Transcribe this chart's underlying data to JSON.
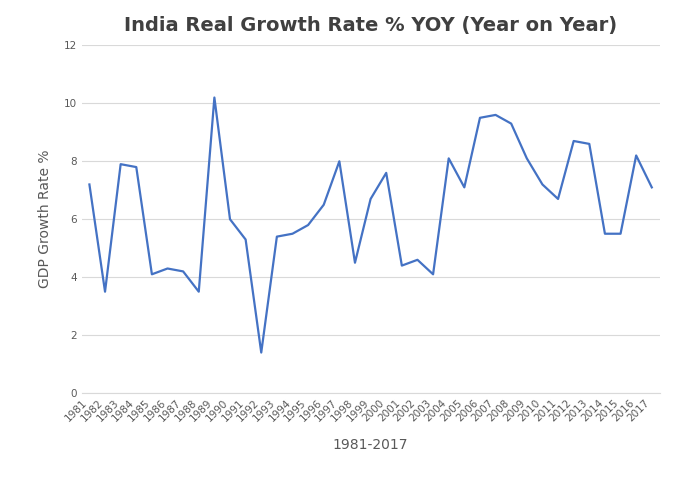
{
  "title": "India Real Growth Rate % YOY (Year on Year)",
  "xlabel": "1981-2017",
  "ylabel": "GDP Growth Rate %",
  "line_color": "#4472C4",
  "background_color": "#ffffff",
  "years": [
    1981,
    1982,
    1983,
    1984,
    1985,
    1986,
    1987,
    1988,
    1989,
    1990,
    1991,
    1992,
    1993,
    1994,
    1995,
    1996,
    1997,
    1998,
    1999,
    2000,
    2001,
    2002,
    2003,
    2004,
    2005,
    2006,
    2007,
    2008,
    2009,
    2010,
    2011,
    2012,
    2013,
    2014,
    2015,
    2016,
    2017
  ],
  "values": [
    7.2,
    3.5,
    7.9,
    7.8,
    4.1,
    4.3,
    4.2,
    3.5,
    10.2,
    6.0,
    5.3,
    1.4,
    5.4,
    5.5,
    5.8,
    6.5,
    8.0,
    4.5,
    6.7,
    7.6,
    4.4,
    4.6,
    4.1,
    8.1,
    7.1,
    9.5,
    9.6,
    9.3,
    8.1,
    7.2,
    6.7,
    8.7,
    8.6,
    5.5,
    5.5,
    8.2,
    7.1
  ],
  "ylim": [
    0,
    12
  ],
  "yticks": [
    0,
    2,
    4,
    6,
    8,
    10,
    12
  ],
  "grid_color": "#d9d9d9",
  "line_width": 1.6,
  "title_fontsize": 14,
  "label_fontsize": 10,
  "tick_fontsize": 7.5,
  "title_color": "#404040",
  "axis_color": "#808080",
  "tick_color": "#595959"
}
